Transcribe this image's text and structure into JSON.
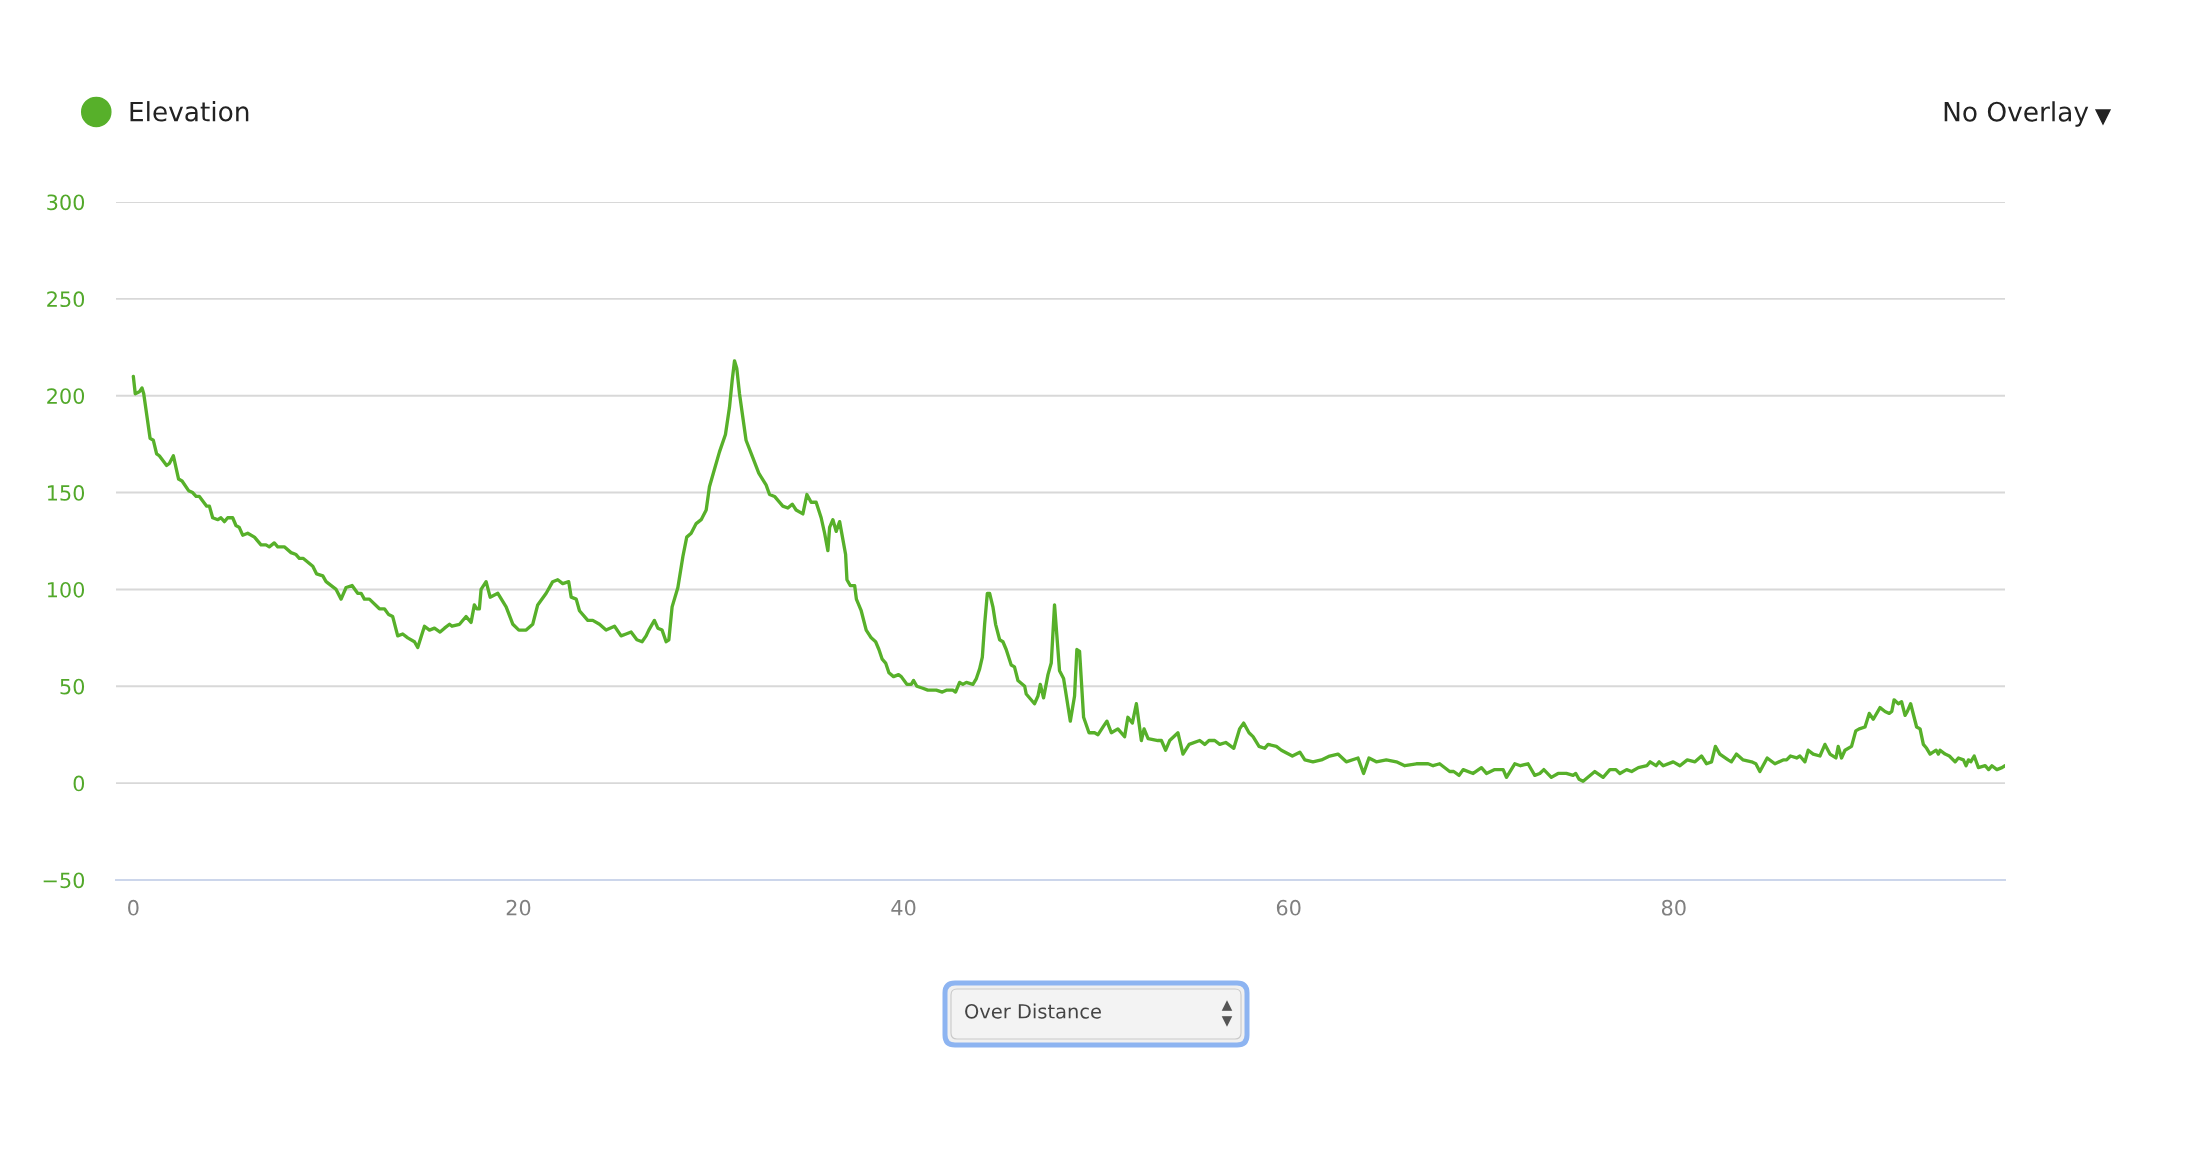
{
  "chart_data": {
    "type": "line",
    "xlim": [
      -0.9,
      97.2
    ],
    "xticks": [
      0,
      20,
      40,
      60,
      80
    ],
    "ylim": [
      -50,
      300
    ],
    "yticks": [
      {
        "value": -50,
        "label": "−50"
      },
      0,
      50,
      100,
      150,
      200,
      250,
      300
    ],
    "grid": "y",
    "legend": "top left",
    "line_style": "solid",
    "annotations": [
      "No Overlay",
      "Over Distance"
    ],
    "series": [
      {
        "name": "Elevation",
        "color": "#57b02a",
        "x": [
          0,
          0.1,
          0.31,
          0.45,
          0.54,
          0.87,
          1.04,
          1.21,
          1.35,
          1.73,
          1.87,
          2.08,
          2.35,
          2.53,
          2.87,
          3.08,
          3.26,
          3.43,
          3.81,
          3.95,
          4.12,
          4.39,
          4.55,
          4.73,
          4.9,
          5.16,
          5.33,
          5.5,
          5.68,
          5.94,
          6.29,
          6.63,
          6.89,
          7.06,
          7.32,
          7.5,
          7.84,
          8.19,
          8.45,
          8.62,
          8.83,
          9.32,
          9.52,
          9.84,
          10.01,
          10.53,
          10.79,
          11.05,
          11.36,
          11.65,
          11.83,
          12,
          12.26,
          12.78,
          13.04,
          13.26,
          13.47,
          13.73,
          13.99,
          14.25,
          14.6,
          14.77,
          15.12,
          15.38,
          15.64,
          15.93,
          16.16,
          16.42,
          16.55,
          16.94,
          17.28,
          17.54,
          17.71,
          17.84,
          17.97,
          18.06,
          18.32,
          18.53,
          18.93,
          19.36,
          19.71,
          20.02,
          20.4,
          20.74,
          21,
          21.44,
          21.78,
          22.04,
          22.3,
          22.61,
          22.74,
          23,
          23.17,
          23.6,
          23.86,
          24.21,
          24.55,
          24.99,
          25.33,
          25.59,
          25.85,
          26.15,
          26.42,
          26.63,
          26.77,
          27.06,
          27.24,
          27.46,
          27.67,
          27.81,
          27.98,
          28.28,
          28.54,
          28.74,
          28.97,
          29.23,
          29.49,
          29.75,
          29.92,
          30.18,
          30.44,
          30.75,
          30.96,
          31.1,
          31.22,
          31.34,
          31.48,
          31.82,
          32.17,
          32.48,
          32.86,
          33.04,
          33.3,
          33.73,
          33.99,
          34.22,
          34.42,
          34.77,
          34.98,
          35.2,
          35.46,
          35.72,
          35.9,
          36.07,
          36.16,
          36.33,
          36.5,
          36.68,
          36.99,
          37.06,
          37.23,
          37.46,
          37.55,
          37.8,
          38.06,
          38.32,
          38.55,
          38.72,
          38.89,
          39.07,
          39.24,
          39.48,
          39.74,
          39.88,
          40.17,
          40.4,
          40.52,
          40.69,
          41,
          41.26,
          41.7,
          42.01,
          42.22,
          42.56,
          42.7,
          42.91,
          43.08,
          43.26,
          43.6,
          43.78,
          43.95,
          44.09,
          44.21,
          44.35,
          44.47,
          44.64,
          44.78,
          44.99,
          45.16,
          45.33,
          45.59,
          45.76,
          45.94,
          46.29,
          46.37,
          46.8,
          46.98,
          47.1,
          47.27,
          47.5,
          47.67,
          47.84,
          48.1,
          48.31,
          48.66,
          48.88,
          49,
          49.14,
          49.35,
          49.63,
          49.92,
          50.1,
          50.36,
          50.56,
          50.79,
          51.13,
          51.48,
          51.65,
          51.88,
          52.09,
          52.35,
          52.49,
          52.7,
          53.21,
          53.39,
          53.61,
          53.82,
          54.25,
          54.51,
          54.83,
          55.38,
          55.64,
          55.86,
          56.16,
          56.42,
          56.73,
          57.15,
          57.45,
          57.66,
          57.94,
          58.15,
          58.46,
          58.75,
          58.93,
          59.36,
          59.62,
          60.19,
          60.58,
          60.84,
          61.26,
          61.7,
          62.13,
          62.56,
          62.99,
          63.6,
          63.89,
          64.17,
          64.55,
          65.07,
          65.59,
          66.03,
          66.63,
          66.98,
          67.24,
          67.5,
          67.84,
          68.36,
          68.57,
          68.85,
          69.06,
          69.58,
          70.01,
          70.27,
          70.7,
          71.14,
          71.31,
          71.74,
          72.04,
          72.43,
          72.78,
          73.04,
          73.25,
          73.64,
          73.99,
          74.42,
          74.77,
          74.91,
          75.08,
          75.29,
          75.9,
          76.33,
          76.68,
          76.99,
          77.2,
          77.55,
          77.81,
          78.16,
          78.6,
          78.77,
          79.08,
          79.24,
          79.45,
          79.97,
          80.32,
          80.7,
          81.1,
          81.44,
          81.7,
          81.96,
          82.16,
          82.39,
          82.82,
          82.99,
          83.25,
          83.6,
          84.04,
          84.26,
          84.47,
          84.85,
          85.25,
          85.68,
          85.86,
          86.06,
          86.38,
          86.55,
          86.81,
          86.98,
          87.24,
          87.59,
          87.85,
          88.11,
          88.42,
          88.54,
          88.71,
          88.89,
          89.23,
          89.45,
          89.63,
          89.93,
          90.15,
          90.36,
          90.71,
          90.97,
          91.19,
          91.32,
          91.44,
          91.66,
          91.83,
          92.01,
          92.13,
          92.3,
          92.61,
          92.79,
          92.96,
          93.13,
          93.31,
          93.62,
          93.74,
          93.83,
          94.09,
          94.31,
          94.61,
          94.78,
          95.04,
          95.18,
          95.3,
          95.42,
          95.6,
          95.82,
          96.17,
          96.35,
          96.52,
          96.78,
          97.04,
          97.2
        ],
        "values": [
          210,
          201,
          202,
          204,
          201,
          178,
          177,
          170,
          169,
          164,
          165,
          169,
          157,
          156,
          151,
          150,
          148,
          148,
          143,
          143,
          137,
          136,
          137,
          135,
          137,
          137,
          133,
          132,
          128,
          129,
          127,
          123,
          123,
          122,
          124,
          122,
          122,
          119,
          118,
          116,
          116,
          112,
          108,
          107,
          104,
          100,
          95,
          101,
          102,
          98,
          98,
          95,
          95,
          90,
          90,
          87,
          86,
          76,
          77,
          75,
          73,
          70,
          81,
          79,
          80,
          78,
          80,
          82,
          81,
          82,
          86,
          83,
          92,
          90,
          90,
          100,
          104,
          96,
          98,
          91,
          82,
          79,
          79,
          82,
          92,
          98,
          104,
          105,
          103,
          104,
          96,
          95,
          89,
          84,
          84,
          82,
          79,
          81,
          76,
          77,
          78,
          74,
          73,
          76,
          79,
          84,
          80,
          79,
          73,
          74,
          91,
          101,
          117,
          127,
          129,
          134,
          136,
          141,
          153,
          162,
          171,
          180,
          194,
          208,
          218,
          214,
          201,
          177,
          168,
          160,
          154,
          149,
          148,
          143,
          142,
          144,
          141,
          139,
          149,
          145,
          145,
          137,
          129,
          120,
          132,
          136,
          130,
          135,
          118,
          105,
          102,
          102,
          95,
          89,
          79,
          75,
          73,
          69,
          64,
          62,
          57,
          55,
          56,
          55,
          51,
          51,
          53,
          50,
          49,
          48,
          48,
          47,
          48,
          48,
          47,
          52,
          51,
          52,
          51,
          54,
          59,
          65,
          82,
          98,
          98,
          91,
          82,
          74,
          73,
          69,
          61,
          60,
          53,
          50,
          46,
          41,
          45,
          51,
          44,
          56,
          62,
          92,
          58,
          54,
          32,
          45,
          69,
          68,
          34,
          26,
          26,
          25,
          29,
          32,
          26,
          28,
          24,
          34,
          31,
          41,
          22,
          28,
          23,
          22,
          22,
          17,
          22,
          26,
          15,
          20,
          22,
          20,
          22,
          22,
          20,
          21,
          18,
          28,
          31,
          26,
          24,
          19,
          18,
          20,
          19,
          17,
          14,
          16,
          12,
          11,
          12,
          14,
          15,
          11,
          13,
          5,
          13,
          11,
          12,
          11,
          9,
          10,
          10,
          10,
          9,
          10,
          6,
          6,
          4,
          7,
          5,
          8,
          5,
          7,
          7,
          3,
          10,
          9,
          10,
          4,
          5,
          7,
          3,
          5,
          5,
          4,
          5,
          2,
          1,
          6,
          3,
          7,
          7,
          5,
          7,
          6,
          8,
          9,
          11,
          9,
          11,
          9,
          11,
          9,
          12,
          11,
          14,
          10,
          11,
          19,
          15,
          12,
          11,
          15,
          12,
          11,
          10,
          6,
          13,
          10,
          12,
          12,
          14,
          13,
          14,
          11,
          17,
          15,
          14,
          20,
          15,
          13,
          19,
          13,
          17,
          19,
          27,
          28,
          29,
          36,
          33,
          39,
          37,
          36,
          37,
          43,
          41,
          42,
          35,
          37,
          41,
          29,
          28,
          20,
          18,
          15,
          17,
          15,
          17,
          15,
          14,
          11,
          13,
          12,
          9,
          12,
          11,
          14,
          8,
          9,
          7,
          9,
          7,
          8,
          9
        ]
      }
    ]
  }
}
